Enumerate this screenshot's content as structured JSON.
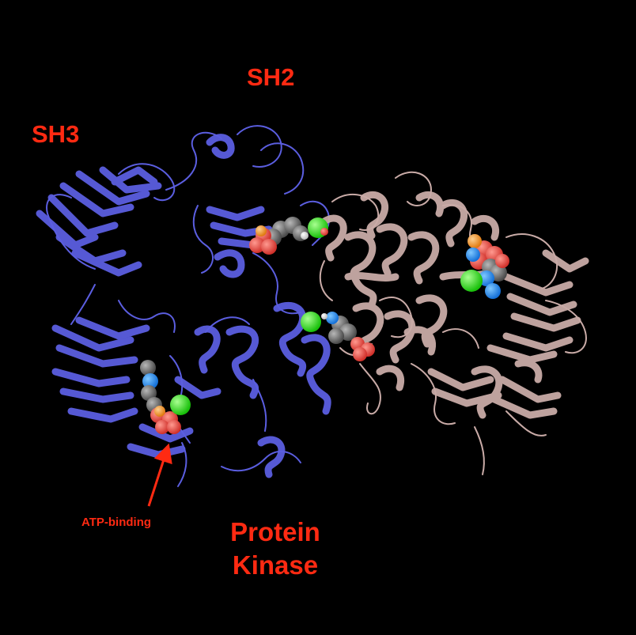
{
  "labels": {
    "sh3": "SH3",
    "sh2": "SH2",
    "atp_binding": "ATP-binding",
    "protein_kinase_line1": "Protein",
    "protein_kinase_line2": "Kinase"
  },
  "colors": {
    "background": "#000000",
    "label": "#ff2a12",
    "chain_a": "#5b5ee0",
    "chain_b": "#c9aba7",
    "ligand_carbon": "#6b6b6b",
    "ligand_oxygen": "#f04a3e",
    "ligand_nitrogen": "#1e90ff",
    "ligand_chlorine": "#22dd11",
    "ligand_phosphorus": "#ff9a1f"
  },
  "structures": [
    "blue-protein-chain",
    "pink-protein-chain",
    "ligand-spheres",
    "atp-arrow"
  ]
}
